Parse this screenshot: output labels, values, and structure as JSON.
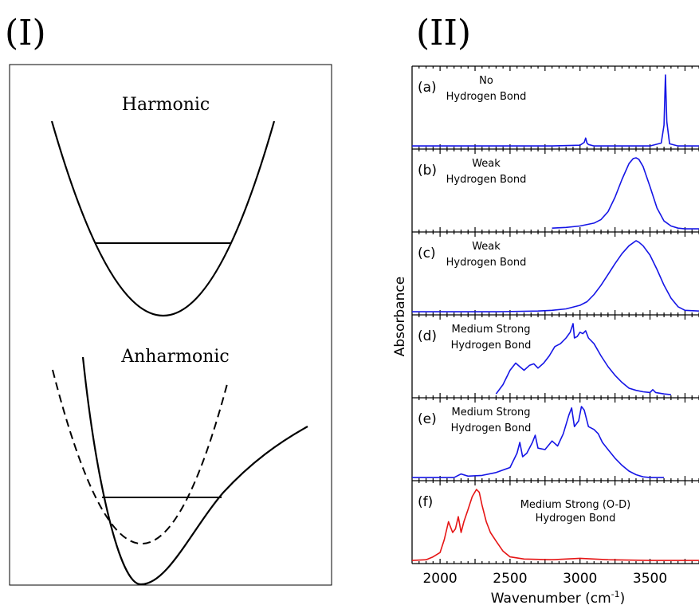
{
  "figure": {
    "label_left": "(I)",
    "label_right": "(II)"
  },
  "chart_data": [
    {
      "type": "line",
      "panel": "(I)",
      "subplots": [
        {
          "title": "Harmonic",
          "curves": [
            "harmonic potential"
          ],
          "level_line": true
        },
        {
          "title": "Anharmonic",
          "curves": [
            "anharmonic potential (solid)",
            "harmonic reference (dashed)"
          ],
          "level_line": true
        }
      ]
    },
    {
      "type": "line",
      "panel": "(II)",
      "xlabel": "Wavenumber (cm",
      "xlabel_sup": "-1",
      "xlabel_close": ")",
      "ylabel": "Absorbance",
      "xlim": [
        1800,
        3850
      ],
      "xticks": [
        2000,
        2500,
        3000,
        3500
      ],
      "xtick_labels": [
        "2000",
        "2500",
        "3000",
        "3500"
      ],
      "panels": [
        {
          "tag": "(a)",
          "line1": "No",
          "line2": "Hydrogen Bond",
          "color": "#1515e6",
          "series": {
            "x": [
              1800,
              2000,
              2200,
              2400,
              2600,
              2800,
              3000,
              3030,
              3040,
              3050,
              3060,
              3100,
              3300,
              3500,
              3580,
              3600,
              3610,
              3620,
              3640,
              3700,
              3850
            ],
            "y": [
              0.01,
              0.01,
              0.01,
              0.01,
              0.01,
              0.01,
              0.02,
              0.06,
              0.12,
              0.05,
              0.03,
              0.01,
              0.01,
              0.01,
              0.05,
              0.3,
              1.0,
              0.35,
              0.04,
              0.01,
              0.01
            ]
          }
        },
        {
          "tag": "(b)",
          "line1": "Weak",
          "line2": "Hydrogen Bond",
          "color": "#1515e6",
          "series": {
            "x": [
              2800,
              2900,
              3000,
              3100,
              3150,
              3200,
              3250,
              3300,
              3350,
              3380,
              3400,
              3420,
              3450,
              3500,
              3550,
              3600,
              3650,
              3700,
              3750,
              3850
            ],
            "y": [
              0.02,
              0.03,
              0.05,
              0.09,
              0.14,
              0.25,
              0.45,
              0.7,
              0.92,
              0.99,
              1.0,
              0.98,
              0.88,
              0.6,
              0.3,
              0.12,
              0.05,
              0.02,
              0.01,
              0.01
            ]
          }
        },
        {
          "tag": "(c)",
          "line1": "Weak",
          "line2": "Hydrogen Bond",
          "color": "#1515e6",
          "series": {
            "x": [
              1800,
              2400,
              2700,
              2800,
              2900,
              3000,
              3050,
              3100,
              3150,
              3200,
              3250,
              3300,
              3350,
              3400,
              3420,
              3450,
              3500,
              3550,
              3600,
              3650,
              3700,
              3750,
              3850
            ],
            "y": [
              0.01,
              0.01,
              0.02,
              0.03,
              0.05,
              0.1,
              0.15,
              0.25,
              0.38,
              0.53,
              0.68,
              0.82,
              0.93,
              1.0,
              0.98,
              0.93,
              0.8,
              0.6,
              0.38,
              0.2,
              0.08,
              0.03,
              0.02
            ]
          }
        },
        {
          "tag": "(d)",
          "line1": "Medium Strong",
          "line2": "Hydrogen Bond",
          "color": "#1515e6",
          "series": {
            "x": [
              2400,
              2450,
              2500,
              2540,
              2570,
              2600,
              2640,
              2670,
              2700,
              2740,
              2780,
              2820,
              2860,
              2900,
              2930,
              2950,
              2960,
              2980,
              3000,
              3020,
              3040,
              3060,
              3100,
              3150,
              3200,
              3250,
              3300,
              3350,
              3400,
              3450,
              3500,
              3520,
              3540,
              3600,
              3650
            ],
            "y": [
              0.02,
              0.15,
              0.35,
              0.45,
              0.4,
              0.35,
              0.42,
              0.44,
              0.38,
              0.45,
              0.55,
              0.68,
              0.72,
              0.8,
              0.88,
              1.0,
              0.8,
              0.82,
              0.88,
              0.86,
              0.9,
              0.8,
              0.72,
              0.55,
              0.4,
              0.28,
              0.18,
              0.1,
              0.07,
              0.05,
              0.04,
              0.08,
              0.04,
              0.02,
              0.01
            ]
          }
        },
        {
          "tag": "(e)",
          "line1": "Medium Strong",
          "line2": "Hydrogen Bond",
          "color": "#1515e6",
          "series": {
            "x": [
              1800,
              2100,
              2150,
              2200,
              2300,
              2400,
              2500,
              2550,
              2570,
              2590,
              2620,
              2660,
              2680,
              2700,
              2750,
              2800,
              2840,
              2880,
              2920,
              2940,
              2960,
              2990,
              3010,
              3030,
              3060,
              3100,
              3130,
              3160,
              3200,
              3250,
              3300,
              3350,
              3400,
              3450,
              3500,
              3600
            ],
            "y": [
              0.01,
              0.01,
              0.06,
              0.03,
              0.04,
              0.08,
              0.15,
              0.35,
              0.5,
              0.3,
              0.35,
              0.5,
              0.6,
              0.42,
              0.4,
              0.52,
              0.45,
              0.62,
              0.88,
              0.98,
              0.72,
              0.8,
              1.0,
              0.95,
              0.72,
              0.68,
              0.62,
              0.5,
              0.4,
              0.28,
              0.18,
              0.1,
              0.05,
              0.02,
              0.01,
              0.01
            ]
          }
        },
        {
          "tag": "(f)",
          "line1": "Medium Strong (O-D)",
          "line2": "Hydrogen Bond",
          "color": "#e61515",
          "series": {
            "x": [
              1800,
              1900,
              1950,
              2000,
              2030,
              2060,
              2090,
              2110,
              2130,
              2150,
              2170,
              2200,
              2230,
              2260,
              2280,
              2300,
              2330,
              2360,
              2400,
              2450,
              2500,
              2600,
              2800,
              3000,
              3200,
              3500,
              3850
            ],
            "y": [
              0.01,
              0.02,
              0.06,
              0.12,
              0.3,
              0.55,
              0.4,
              0.45,
              0.62,
              0.4,
              0.55,
              0.72,
              0.9,
              1.0,
              0.96,
              0.78,
              0.55,
              0.4,
              0.28,
              0.14,
              0.06,
              0.03,
              0.02,
              0.04,
              0.02,
              0.01,
              0.01
            ]
          }
        }
      ]
    }
  ]
}
